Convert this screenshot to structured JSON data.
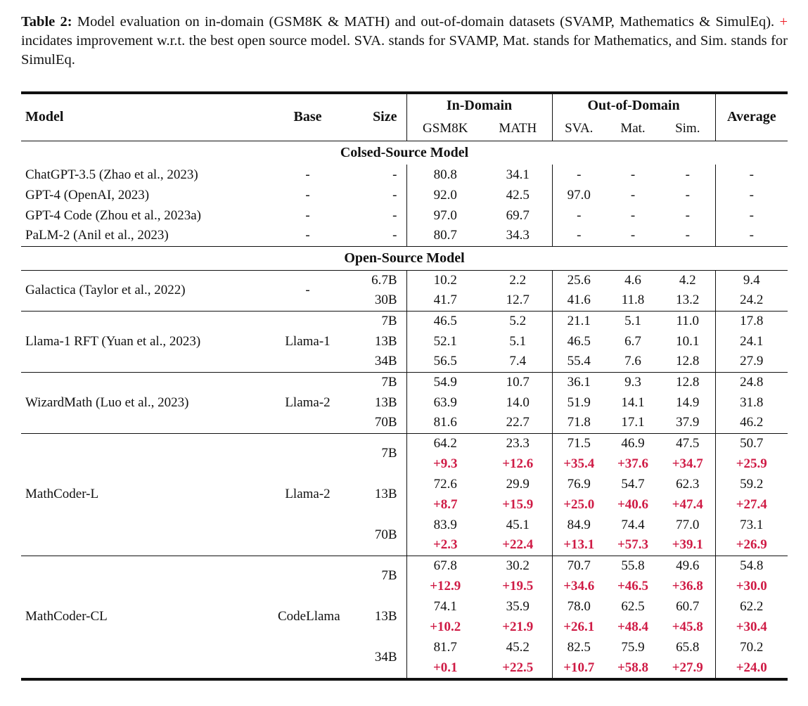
{
  "caption": {
    "label": "Table 2:",
    "before_plus": "Model evaluation on in-domain (GSM8K & MATH) and out-of-domain datasets (SVAMP, Mathematics & SimulEq).",
    "plus": "+",
    "after_plus": "incidates improvement w.r.t. the best open source model. SVA. stands for SVAMP, Mat. stands for Mathematics, and Sim. stands for SimulEq."
  },
  "colors": {
    "caption_plus_red": "#ee1c24",
    "delta_red": "#cf1b45"
  },
  "table": {
    "header": {
      "model": "Model",
      "base": "Base",
      "size": "Size",
      "in_domain": "In-Domain",
      "out_of_domain": "Out-of-Domain",
      "average": "Average",
      "gsm8k": "GSM8K",
      "math": "MATH",
      "sva": "SVA.",
      "mat": "Mat.",
      "sim": "Sim."
    },
    "sections": [
      {
        "type": "title",
        "label": "Colsed-Source Model"
      },
      {
        "type": "flat",
        "rows": [
          {
            "model": "ChatGPT-3.5 (Zhao et al., 2023)",
            "base": "-",
            "size": "-",
            "values": [
              "80.8",
              "34.1",
              "-",
              "-",
              "-",
              "-"
            ]
          },
          {
            "model": "GPT-4 (OpenAI, 2023)",
            "base": "-",
            "size": "-",
            "values": [
              "92.0",
              "42.5",
              "97.0",
              "-",
              "-",
              "-"
            ]
          },
          {
            "model": "GPT-4 Code (Zhou et al., 2023a)",
            "base": "-",
            "size": "-",
            "values": [
              "97.0",
              "69.7",
              "-",
              "-",
              "-",
              "-"
            ]
          },
          {
            "model": "PaLM-2 (Anil et al., 2023)",
            "base": "-",
            "size": "-",
            "values": [
              "80.7",
              "34.3",
              "-",
              "-",
              "-",
              "-"
            ]
          }
        ]
      },
      {
        "type": "title",
        "label": "Open-Source Model"
      },
      {
        "type": "grouped",
        "model": "Galactica (Taylor et al., 2022)",
        "base": "-",
        "sizes": [
          {
            "size": "6.7B",
            "values": [
              "10.2",
              "2.2",
              "25.6",
              "4.6",
              "4.2",
              "9.4"
            ]
          },
          {
            "size": "30B",
            "values": [
              "41.7",
              "12.7",
              "41.6",
              "11.8",
              "13.2",
              "24.2"
            ]
          }
        ]
      },
      {
        "type": "grouped",
        "model": "Llama-1 RFT (Yuan et al., 2023)",
        "base": "Llama-1",
        "sizes": [
          {
            "size": "7B",
            "values": [
              "46.5",
              "5.2",
              "21.1",
              "5.1",
              "11.0",
              "17.8"
            ]
          },
          {
            "size": "13B",
            "values": [
              "52.1",
              "5.1",
              "46.5",
              "6.7",
              "10.1",
              "24.1"
            ]
          },
          {
            "size": "34B",
            "values": [
              "56.5",
              "7.4",
              "55.4",
              "7.6",
              "12.8",
              "27.9"
            ]
          }
        ]
      },
      {
        "type": "grouped",
        "model": "WizardMath (Luo et al., 2023)",
        "base": "Llama-2",
        "sizes": [
          {
            "size": "7B",
            "values": [
              "54.9",
              "10.7",
              "36.1",
              "9.3",
              "12.8",
              "24.8"
            ]
          },
          {
            "size": "13B",
            "values": [
              "63.9",
              "14.0",
              "51.9",
              "14.1",
              "14.9",
              "31.8"
            ]
          },
          {
            "size": "70B",
            "values": [
              "81.6",
              "22.7",
              "71.8",
              "17.1",
              "37.9",
              "46.2"
            ]
          }
        ]
      },
      {
        "type": "grouped",
        "model": "MathCoder-L",
        "base": "Llama-2",
        "sizes": [
          {
            "size": "7B",
            "values": [
              "64.2",
              "23.3",
              "71.5",
              "46.9",
              "47.5",
              "50.7"
            ],
            "deltas": [
              "+9.3",
              "+12.6",
              "+35.4",
              "+37.6",
              "+34.7",
              "+25.9"
            ]
          },
          {
            "size": "13B",
            "values": [
              "72.6",
              "29.9",
              "76.9",
              "54.7",
              "62.3",
              "59.2"
            ],
            "deltas": [
              "+8.7",
              "+15.9",
              "+25.0",
              "+40.6",
              "+47.4",
              "+27.4"
            ]
          },
          {
            "size": "70B",
            "values": [
              "83.9",
              "45.1",
              "84.9",
              "74.4",
              "77.0",
              "73.1"
            ],
            "deltas": [
              "+2.3",
              "+22.4",
              "+13.1",
              "+57.3",
              "+39.1",
              "+26.9"
            ]
          }
        ]
      },
      {
        "type": "grouped",
        "model": "MathCoder-CL",
        "base": "CodeLlama",
        "sizes": [
          {
            "size": "7B",
            "values": [
              "67.8",
              "30.2",
              "70.7",
              "55.8",
              "49.6",
              "54.8"
            ],
            "deltas": [
              "+12.9",
              "+19.5",
              "+34.6",
              "+46.5",
              "+36.8",
              "+30.0"
            ]
          },
          {
            "size": "13B",
            "values": [
              "74.1",
              "35.9",
              "78.0",
              "62.5",
              "60.7",
              "62.2"
            ],
            "deltas": [
              "+10.2",
              "+21.9",
              "+26.1",
              "+48.4",
              "+45.8",
              "+30.4"
            ]
          },
          {
            "size": "34B",
            "values": [
              "81.7",
              "45.2",
              "82.5",
              "75.9",
              "65.8",
              "70.2"
            ],
            "deltas": [
              "+0.1",
              "+22.5",
              "+10.7",
              "+58.8",
              "+27.9",
              "+24.0"
            ]
          }
        ]
      }
    ]
  }
}
